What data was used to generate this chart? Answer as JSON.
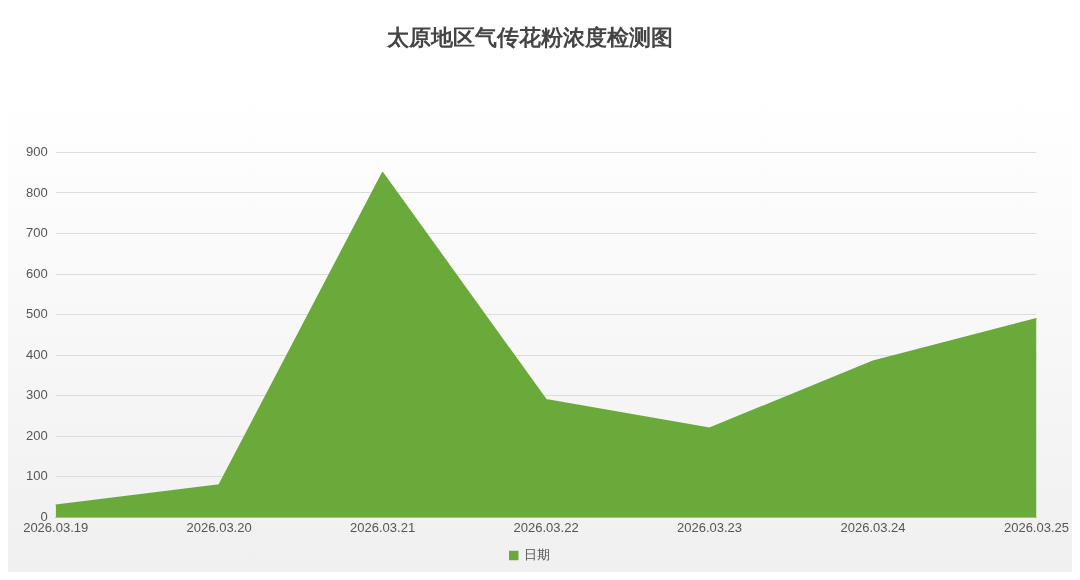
{
  "chart_data": {
    "type": "area",
    "title": "太原地区气传花粉浓度检测图",
    "categories": [
      "2026.03.19",
      "2026.03.20",
      "2026.03.21",
      "2026.03.22",
      "2026.03.23",
      "2026.03.24",
      "2026.03.25"
    ],
    "series": [
      {
        "name": "日期",
        "color": "#6aaa3a",
        "values": [
          30,
          80,
          850,
          290,
          220,
          385,
          490
        ]
      }
    ],
    "ylim": [
      0,
      900
    ],
    "yticks": [
      0,
      100,
      200,
      300,
      400,
      500,
      600,
      700,
      800,
      900
    ],
    "grid": "y",
    "legend": "bottom"
  }
}
